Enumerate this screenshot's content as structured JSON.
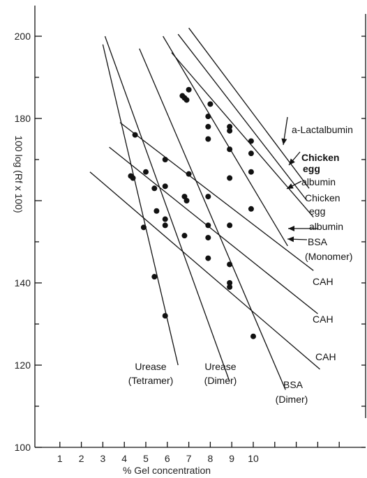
{
  "chart_data": {
    "type": "line",
    "title": "",
    "xlabel": "% Gel concentration",
    "ylabel": "100 log (Rf x 100)",
    "xlim": [
      0,
      14
    ],
    "ylim": [
      100,
      203
    ],
    "x_ticks": [
      1,
      2,
      3,
      4,
      5,
      6,
      7,
      8,
      9,
      10
    ],
    "y_ticks": [
      100,
      120,
      140,
      160,
      180,
      200
    ],
    "y_tick_labels": [
      "100",
      "120",
      "140",
      "",
      "180",
      "200"
    ],
    "series": [
      {
        "name": "a-Lactalbumin",
        "line": [
          [
            7.0,
            202.0
          ],
          [
            12.6,
            163.0
          ]
        ],
        "points": [
          [
            7.0,
            187.0
          ],
          [
            8.0,
            183.5
          ],
          [
            8.9,
            178.0
          ],
          [
            9.9,
            174.5
          ]
        ]
      },
      {
        "name": "Chicken egg albumin",
        "line": [
          [
            6.5,
            200.5
          ],
          [
            12.5,
            160.0
          ]
        ],
        "points": [
          [
            6.9,
            184.5
          ],
          [
            7.9,
            180.5
          ],
          [
            8.9,
            177.0
          ],
          [
            9.9,
            171.5
          ]
        ]
      },
      {
        "name": "Chicken egg albumin",
        "line": [
          [
            6.2,
            196.0
          ],
          [
            12.8,
            156.0
          ]
        ],
        "points": [
          [
            6.8,
            185.0
          ],
          [
            7.9,
            178.0
          ],
          [
            8.9,
            172.5
          ],
          [
            9.9,
            167.0
          ]
        ]
      },
      {
        "name": "BSA (Monomer)",
        "line": [
          [
            5.8,
            200.0
          ],
          [
            11.6,
            149.0
          ]
        ],
        "points": [
          [
            6.7,
            185.5
          ],
          [
            7.9,
            175.0
          ],
          [
            8.9,
            165.5
          ],
          [
            9.9,
            158.0
          ]
        ]
      },
      {
        "name": "CAH",
        "line": [
          [
            3.8,
            179.0
          ],
          [
            12.8,
            143.0
          ]
        ],
        "points": [
          [
            4.5,
            176.0
          ],
          [
            5.9,
            170.0
          ],
          [
            7.0,
            166.5
          ],
          [
            7.9,
            161.0
          ],
          [
            8.9,
            154.0
          ]
        ]
      },
      {
        "name": "CAH",
        "line": [
          [
            3.3,
            173.0
          ],
          [
            13.0,
            132.5
          ]
        ],
        "points": [
          [
            5.0,
            167.0
          ],
          [
            5.9,
            163.5
          ],
          [
            6.9,
            160.0
          ],
          [
            7.9,
            151.0
          ],
          [
            8.9,
            144.5
          ]
        ]
      },
      {
        "name": "CAH",
        "line": [
          [
            2.4,
            167.0
          ],
          [
            13.1,
            119.0
          ]
        ],
        "points": [
          [
            4.4,
            165.5
          ],
          [
            5.5,
            157.5
          ],
          [
            6.8,
            151.5
          ],
          [
            7.9,
            146.0
          ],
          [
            8.9,
            140.0
          ]
        ]
      },
      {
        "name": "Urease (Tetramer)",
        "line": [
          [
            3.0,
            198.0
          ],
          [
            6.5,
            120.0
          ]
        ],
        "points": [
          [
            4.3,
            166.0
          ],
          [
            4.9,
            153.5
          ],
          [
            5.4,
            141.5
          ],
          [
            5.9,
            132.0
          ]
        ]
      },
      {
        "name": "Urease (Dimer)",
        "line": [
          [
            3.1,
            200.0
          ],
          [
            8.9,
            116.0
          ]
        ],
        "points": [
          [
            5.4,
            163.0
          ],
          [
            5.9,
            155.5
          ],
          [
            6.8,
            161.0
          ]
        ]
      },
      {
        "name": "BSA (Dimer)",
        "line": [
          [
            4.7,
            197.0
          ],
          [
            11.5,
            114.0
          ]
        ],
        "points": [
          [
            7.9,
            154.0
          ],
          [
            8.9,
            139.0
          ],
          [
            10.0,
            127.0
          ],
          [
            5.9,
            154.0
          ]
        ]
      }
    ],
    "labels": [
      {
        "text": "a-Lactalbumin",
        "bold": false
      },
      {
        "text": "Chicken",
        "bold": true
      },
      {
        "text": "egg",
        "bold": true
      },
      {
        "text": "albumin",
        "bold": false
      },
      {
        "text": "Chicken",
        "bold": false
      },
      {
        "text": "egg",
        "bold": false
      },
      {
        "text": "albumin",
        "bold": false
      },
      {
        "text": "BSA",
        "bold": false
      },
      {
        "text": "(Monomer)",
        "bold": false
      },
      {
        "text": "CAH",
        "bold": false
      },
      {
        "text": "CAH",
        "bold": false
      },
      {
        "text": "CAH",
        "bold": false
      },
      {
        "text": "Urease",
        "bold": false
      },
      {
        "text": "(Tetramer)",
        "bold": false
      },
      {
        "text": "Urease",
        "bold": false
      },
      {
        "text": "(Dimer)",
        "bold": false
      },
      {
        "text": "BSA",
        "bold": false
      },
      {
        "text": "(Dimer)",
        "bold": false
      }
    ],
    "grid": false,
    "legend": "none"
  }
}
